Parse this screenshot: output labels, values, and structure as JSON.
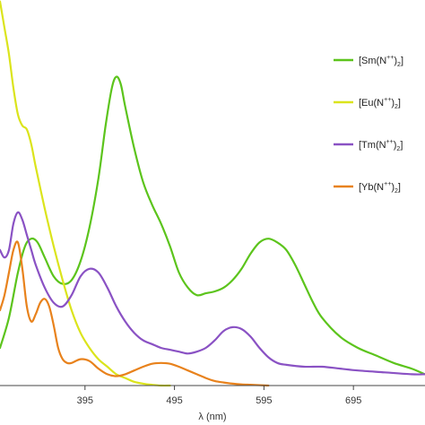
{
  "chart_data": {
    "type": "line",
    "title": "",
    "xlabel": "λ (nm)",
    "ylabel": "",
    "xlim": [
      300,
      775
    ],
    "ylim": [
      0,
      1.0
    ],
    "x_ticks": [
      395,
      495,
      595,
      695
    ],
    "x_tick_labels": [
      "395",
      "495",
      "595",
      "695"
    ],
    "grid": false,
    "legend_position": "right",
    "series": [
      {
        "name": "[Sm(N⁺⁺)₂]",
        "legend": {
          "base": "[Sm(N",
          "sup": "++",
          "mid": ")",
          "sub": "2",
          "end": "]"
        },
        "color": "#5cc41c",
        "x": [
          300,
          310,
          320,
          328,
          335,
          342,
          350,
          360,
          370,
          380,
          390,
          400,
          410,
          418,
          425,
          430,
          435,
          440,
          450,
          460,
          470,
          480,
          490,
          500,
          510,
          520,
          530,
          540,
          550,
          560,
          570,
          580,
          590,
          600,
          610,
          620,
          630,
          640,
          650,
          660,
          680,
          700,
          720,
          740,
          760,
          775
        ],
        "y": [
          0.1,
          0.18,
          0.3,
          0.37,
          0.39,
          0.38,
          0.34,
          0.29,
          0.27,
          0.28,
          0.33,
          0.42,
          0.55,
          0.69,
          0.79,
          0.82,
          0.8,
          0.74,
          0.63,
          0.54,
          0.48,
          0.43,
          0.37,
          0.3,
          0.26,
          0.24,
          0.245,
          0.25,
          0.26,
          0.28,
          0.31,
          0.35,
          0.38,
          0.39,
          0.38,
          0.36,
          0.32,
          0.27,
          0.22,
          0.18,
          0.13,
          0.1,
          0.08,
          0.06,
          0.045,
          0.03
        ]
      },
      {
        "name": "[Eu(N⁺⁺)₂]",
        "legend": {
          "base": "[Eu(N",
          "sup": "++",
          "mid": ")",
          "sub": "2",
          "end": "]"
        },
        "color": "#dbe41c",
        "x": [
          300,
          305,
          310,
          315,
          320,
          325,
          330,
          335,
          340,
          350,
          360,
          370,
          380,
          390,
          400,
          410,
          420,
          430,
          440,
          450,
          460,
          470,
          480,
          490
        ],
        "y": [
          1.02,
          0.95,
          0.88,
          0.79,
          0.72,
          0.69,
          0.68,
          0.64,
          0.58,
          0.47,
          0.37,
          0.28,
          0.2,
          0.14,
          0.1,
          0.07,
          0.05,
          0.03,
          0.02,
          0.01,
          0.005,
          0.002,
          0.0,
          0.0
        ]
      },
      {
        "name": "[Tm(N⁺⁺)₂]",
        "legend": {
          "base": "[Tm(N",
          "sup": "++",
          "mid": ")",
          "sub": "2",
          "end": "]"
        },
        "color": "#8a52c4",
        "x": [
          300,
          305,
          310,
          315,
          320,
          325,
          330,
          335,
          340,
          350,
          360,
          370,
          380,
          390,
          400,
          410,
          420,
          430,
          440,
          450,
          460,
          470,
          480,
          490,
          500,
          510,
          520,
          530,
          540,
          550,
          560,
          570,
          580,
          590,
          600,
          610,
          620,
          640,
          660,
          680,
          700,
          730,
          760,
          775
        ],
        "y": [
          0.36,
          0.34,
          0.36,
          0.43,
          0.46,
          0.44,
          0.4,
          0.36,
          0.32,
          0.26,
          0.22,
          0.21,
          0.24,
          0.29,
          0.31,
          0.3,
          0.26,
          0.21,
          0.17,
          0.14,
          0.12,
          0.11,
          0.1,
          0.095,
          0.09,
          0.085,
          0.09,
          0.1,
          0.12,
          0.145,
          0.155,
          0.15,
          0.13,
          0.1,
          0.075,
          0.06,
          0.055,
          0.05,
          0.05,
          0.045,
          0.04,
          0.035,
          0.03,
          0.03
        ]
      },
      {
        "name": "[Yb(N⁺⁺)₂]",
        "legend": {
          "base": "[Yb(N",
          "sup": "++",
          "mid": ")",
          "sub": "2",
          "end": "]"
        },
        "color": "#e8821c",
        "x": [
          300,
          305,
          310,
          315,
          320,
          325,
          330,
          335,
          340,
          345,
          350,
          355,
          360,
          365,
          370,
          375,
          380,
          390,
          400,
          410,
          420,
          430,
          440,
          450,
          460,
          470,
          480,
          490,
          500,
          510,
          520,
          530,
          540,
          550,
          560,
          570,
          580,
          590,
          600
        ],
        "y": [
          0.2,
          0.24,
          0.3,
          0.36,
          0.38,
          0.31,
          0.21,
          0.17,
          0.19,
          0.22,
          0.23,
          0.21,
          0.16,
          0.1,
          0.07,
          0.06,
          0.06,
          0.07,
          0.065,
          0.045,
          0.03,
          0.025,
          0.03,
          0.04,
          0.05,
          0.058,
          0.06,
          0.058,
          0.05,
          0.04,
          0.03,
          0.02,
          0.012,
          0.008,
          0.005,
          0.003,
          0.002,
          0.001,
          0.0
        ]
      }
    ]
  }
}
